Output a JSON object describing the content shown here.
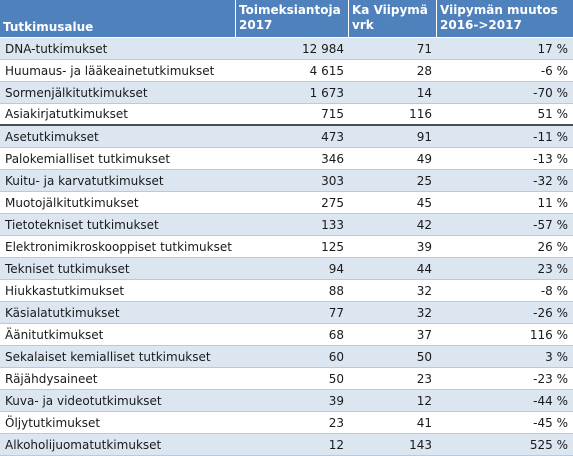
{
  "headers": {
    "area": "Tutkimusalue",
    "orders_line1": "Toimeksiantoja",
    "orders_line2": "2017",
    "delay_line1": "Ka Viipymä",
    "delay_line2": "vrk",
    "change_line1": "Viipymän muutos",
    "change_line2": "2016->2017"
  },
  "colors": {
    "header_bg": "#4f81bd",
    "stripe_bg": "#dce6f1",
    "separator": "#4f4f4f"
  },
  "rows": [
    {
      "area": "DNA-tutkimukset",
      "orders": "12 984",
      "delay": "71",
      "change": "17 %"
    },
    {
      "area": "Huumaus- ja lääkeainetutkimukset",
      "orders": "4 615",
      "delay": "28",
      "change": "-6 %"
    },
    {
      "area": "Sormenjälkitutkimukset",
      "orders": "1 673",
      "delay": "14",
      "change": "-70 %"
    },
    {
      "area": "Asiakirjatutkimukset",
      "orders": "715",
      "delay": "116",
      "change": "51 %"
    },
    {
      "area": "Asetutkimukset",
      "orders": "473",
      "delay": "91",
      "change": "-11 %"
    },
    {
      "area": "Palokemialliset tutkimukset",
      "orders": "346",
      "delay": "49",
      "change": "-13 %"
    },
    {
      "area": "Kuitu- ja karvatutkimukset",
      "orders": "303",
      "delay": "25",
      "change": "-32 %"
    },
    {
      "area": "Muotojälkitutkimukset",
      "orders": "275",
      "delay": "45",
      "change": "11 %"
    },
    {
      "area": "Tietotekniset tutkimukset",
      "orders": "133",
      "delay": "42",
      "change": "-57 %"
    },
    {
      "area": "Elektronimikroskooppiset tutkimukset",
      "orders": "125",
      "delay": "39",
      "change": "26 %"
    },
    {
      "area": "Tekniset tutkimukset",
      "orders": "94",
      "delay": "44",
      "change": "23 %"
    },
    {
      "area": "Hiukkastutkimukset",
      "orders": "88",
      "delay": "32",
      "change": "-8 %"
    },
    {
      "area": "Käsialatutkimukset",
      "orders": "77",
      "delay": "32",
      "change": "-26 %"
    },
    {
      "area": "Äänitutkimukset",
      "orders": "68",
      "delay": "37",
      "change": "116 %"
    },
    {
      "area": "Sekalaiset kemialliset tutkimukset",
      "orders": "60",
      "delay": "50",
      "change": "3 %"
    },
    {
      "area": "Räjähdysaineet",
      "orders": "50",
      "delay": "23",
      "change": "-23 %"
    },
    {
      "area": "Kuva- ja videotutkimukset",
      "orders": "39",
      "delay": "12",
      "change": "-44 %"
    },
    {
      "area": "Öljytutkimukset",
      "orders": "23",
      "delay": "41",
      "change": "-45 %"
    },
    {
      "area": "Alkoholijuomatutkimukset",
      "orders": "12",
      "delay": "143",
      "change": "525 %"
    }
  ]
}
